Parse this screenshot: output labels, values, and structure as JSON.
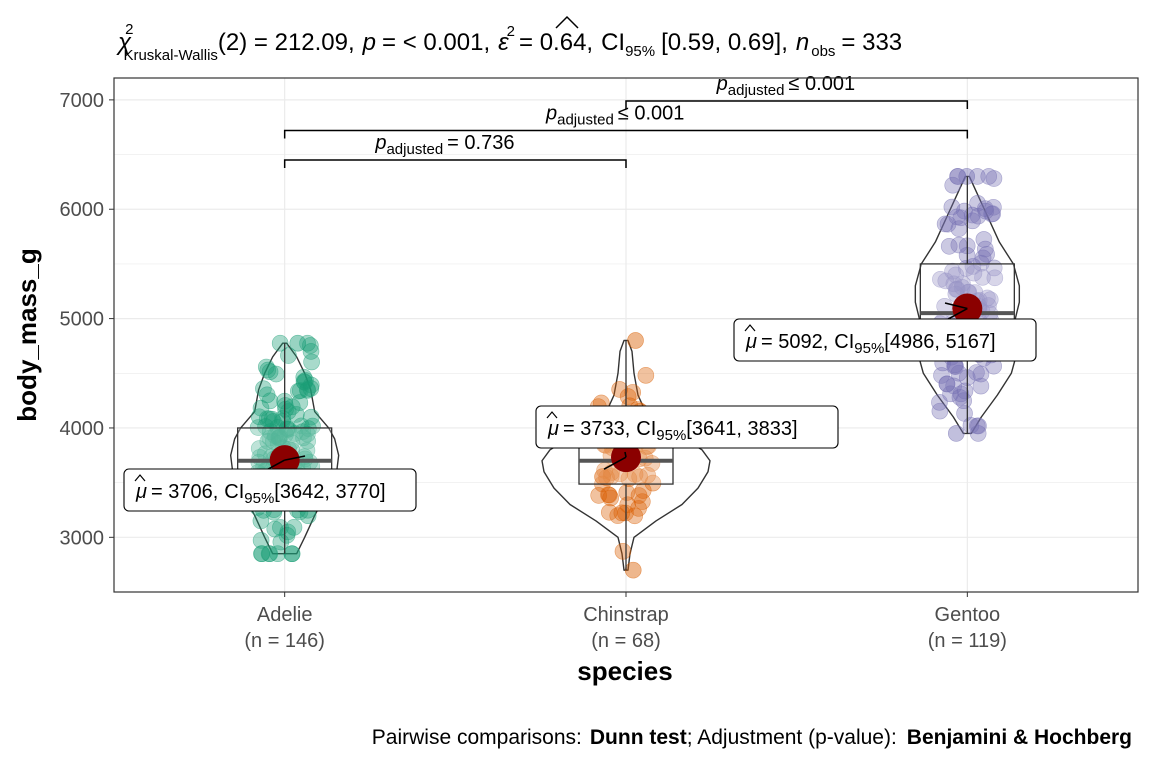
{
  "chart_data": {
    "type": "violin",
    "title": {
      "stat_symbol": "χ",
      "stat_sup": "2",
      "stat_sub": "Kruskal-Wallis",
      "stat_value": "(2) = 212.09,",
      "p_symbol": "p",
      "p_value": "= < 0.001,",
      "effect_symbol": "ε",
      "effect_sup": "2",
      "effect_value": "= 0.64,",
      "ci_symbol": "CI",
      "ci_sub": "95%",
      "ci_value": "[0.59, 0.69],",
      "n_symbol": "n",
      "n_sub": "obs",
      "n_value": "= 333"
    },
    "xlabel": "species",
    "ylabel": "body_mass_g",
    "ylim": [
      2500,
      7200
    ],
    "yticks": [
      3000,
      4000,
      5000,
      6000,
      7000
    ],
    "grid": true,
    "categories": [
      {
        "name": "Adelie",
        "n_label": "(n = 146)",
        "color": "#1b9e77",
        "mean": 3706,
        "median": 3700,
        "q1": 3350,
        "q3": 4000,
        "min": 2850,
        "max": 4775,
        "mu_label": "= 3706,",
        "ci_label": "[3642, 3770]"
      },
      {
        "name": "Chinstrap",
        "n_label": "(n = 68)",
        "color": "#d95f02",
        "mean": 3733,
        "median": 3700,
        "q1": 3487,
        "q3": 3950,
        "min": 2700,
        "max": 4800,
        "mu_label": "= 3733,",
        "ci_label": "[3641, 3833]"
      },
      {
        "name": "Gentoo",
        "n_label": "(n = 119)",
        "color": "#7570b3",
        "mean": 5092,
        "median": 5050,
        "q1": 4700,
        "q3": 5500,
        "min": 3950,
        "max": 6300,
        "mu_label": "= 5092,",
        "ci_label": "[4986, 5167]"
      }
    ],
    "comparisons": [
      {
        "from": 0,
        "to": 1,
        "y": 6450,
        "p_symbol": "p",
        "p_sub": "adjusted",
        "p_text": "= 0.736"
      },
      {
        "from": 0,
        "to": 2,
        "y": 6720,
        "p_symbol": "p",
        "p_sub": "adjusted",
        "p_text": "≤ 0.001"
      },
      {
        "from": 1,
        "to": 2,
        "y": 6990,
        "p_symbol": "p",
        "p_sub": "adjusted",
        "p_text": "≤ 0.001"
      }
    ],
    "mean_color": "#8b0000",
    "caption": {
      "prefix": "Pairwise comparisons:",
      "test": "Dunn test",
      "middle": "; Adjustment (p-value):",
      "method": "Benjamini & Hochberg"
    }
  }
}
